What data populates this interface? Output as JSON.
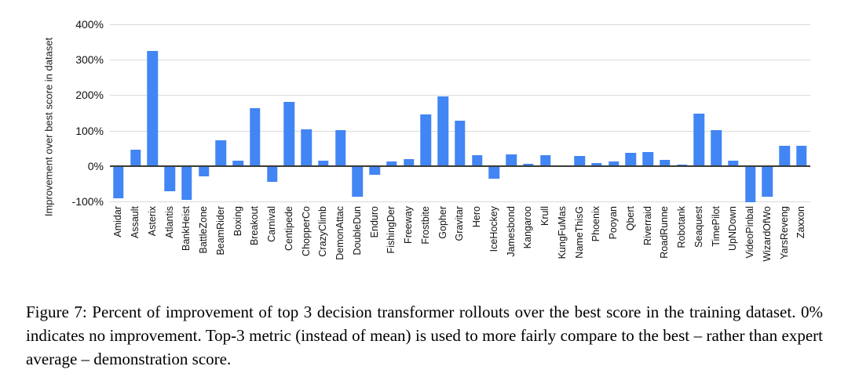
{
  "figure": {
    "caption": "Figure 7: Percent of improvement of top 3 decision transformer rollouts over the best score in the training dataset. 0% indicates no improvement. Top-3 metric (instead of mean) is used to more fairly compare to the best – rather than expert average – demonstration score."
  },
  "chart_data": {
    "type": "bar",
    "title": "",
    "xlabel": "",
    "ylabel": "Improvement over best score in dataset",
    "ylim": [
      -100,
      400
    ],
    "yticks": [
      400,
      300,
      200,
      100,
      0,
      -100
    ],
    "ytick_labels": [
      "400%",
      "300%",
      "200%",
      "100%",
      "0%",
      "-100%"
    ],
    "grid": true,
    "legend": false,
    "bar_color": "#4285f4",
    "categories": [
      "Amidar",
      "Assault",
      "Asterix",
      "Atlantis",
      "BankHeist",
      "BattleZone",
      "BeamRider",
      "Boxing",
      "Breakout",
      "Carnival",
      "Centipede",
      "ChopperCo",
      "CrazyClimb",
      "DemonAttac",
      "DoubleDun",
      "Enduro",
      "FishingDer",
      "Freeway",
      "Frostbite",
      "Gopher",
      "Gravitar",
      "Hero",
      "IceHockey",
      "Jamesbond",
      "Kangaroo",
      "Krull",
      "KungFuMas",
      "NameThisG",
      "Phoenix",
      "Pooyan",
      "Qbert",
      "Riverraid",
      "RoadRunne",
      "Robotank",
      "Seaquest",
      "TimePilot",
      "UpNDown",
      "VideoPinbal",
      "WizardOfWo",
      "YarsReveng",
      "Zaxxon"
    ],
    "values": [
      -88,
      47,
      325,
      -68,
      -93,
      -28,
      72,
      16,
      164,
      -42,
      180,
      104,
      16,
      102,
      -84,
      -22,
      12,
      20,
      145,
      197,
      127,
      30,
      -33,
      32,
      7,
      30,
      0,
      28,
      8,
      12,
      38,
      40,
      18,
      5,
      147,
      101,
      16,
      -100,
      -84,
      58,
      58
    ]
  }
}
